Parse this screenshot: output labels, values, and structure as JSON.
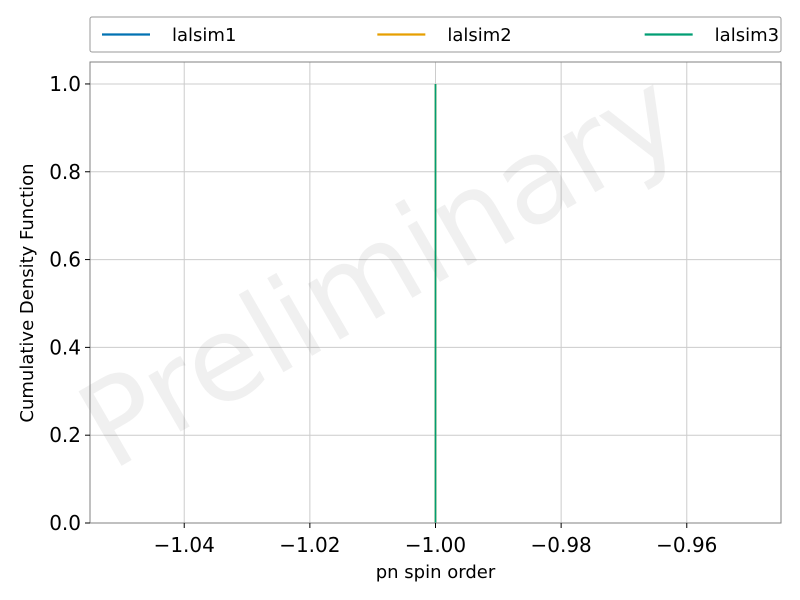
{
  "chart_data": {
    "type": "line",
    "xlabel": "pn spin order",
    "ylabel": "Cumulative Density Function",
    "xlim": [
      -1.055,
      -0.945
    ],
    "ylim": [
      0,
      1.05
    ],
    "x_ticks": [
      -1.04,
      -1.02,
      -1.0,
      -0.98,
      -0.96
    ],
    "x_tick_labels": [
      "−1.04",
      "−1.02",
      "−1.00",
      "−0.98",
      "−0.96"
    ],
    "y_ticks": [
      0.0,
      0.2,
      0.4,
      0.6,
      0.8,
      1.0
    ],
    "y_tick_labels": [
      "0.0",
      "0.2",
      "0.4",
      "0.6",
      "0.8",
      "1.0"
    ],
    "grid": true,
    "legend_position": "top",
    "watermark": "Preliminary",
    "series": [
      {
        "name": "lalsim1",
        "color": "#0072b2",
        "x": [
          -1.0,
          -1.0
        ],
        "y": [
          0.0,
          1.0
        ]
      },
      {
        "name": "lalsim2",
        "color": "#e69f00",
        "x": [
          -1.0,
          -1.0
        ],
        "y": [
          0.0,
          1.0
        ]
      },
      {
        "name": "lalsim3",
        "color": "#009e73",
        "x": [
          -1.0,
          -1.0
        ],
        "y": [
          0.0,
          1.0
        ]
      }
    ]
  }
}
